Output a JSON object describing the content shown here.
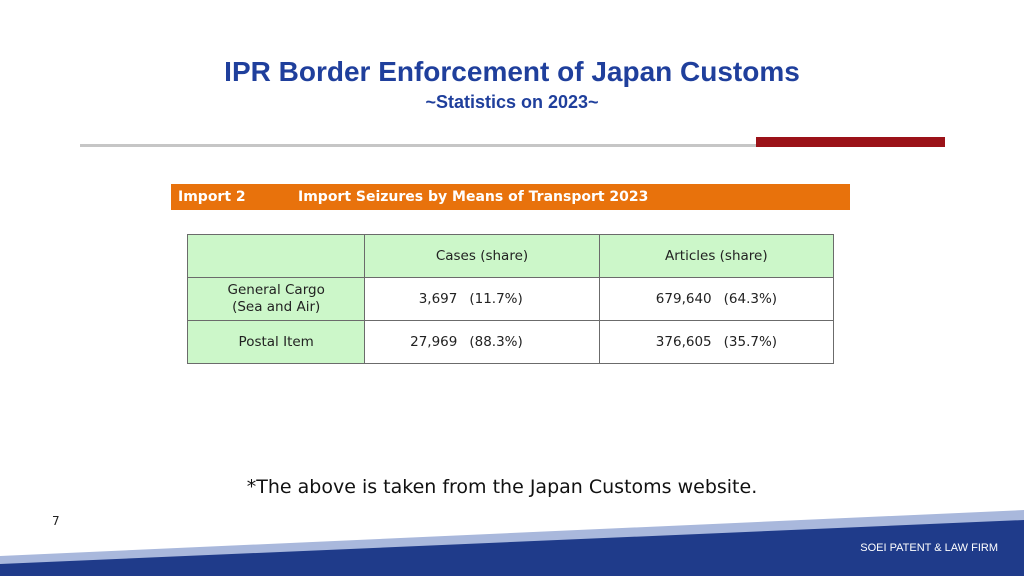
{
  "header": {
    "title": "IPR Border Enforcement of Japan Customs",
    "subtitle": "~Statistics on 2023~"
  },
  "banner": {
    "code": "Import 2",
    "name": "Import Seizures by Means of Transport 2023"
  },
  "table": {
    "columns": [
      "",
      "Cases (share)",
      "Articles (share)"
    ],
    "rows": [
      {
        "label_line1": "General Cargo",
        "label_line2": "(Sea and Air)",
        "cases": "3,697",
        "cases_share": "(11.7%)",
        "articles": "679,640",
        "articles_share": "(64.3%)"
      },
      {
        "label_line1": "Postal Item",
        "label_line2": "",
        "cases": "27,969",
        "cases_share": "(88.3%)",
        "articles": "376,605",
        "articles_share": "(35.7%)"
      }
    ]
  },
  "note": "*The above is taken from the Japan Customs website.",
  "page_number": "7",
  "firm_name": "SOEI PATENT & LAW FIRM",
  "colors": {
    "title": "#1f3f9c",
    "banner": "#e8720c",
    "header_cell": "#ccf7c9",
    "accent_red": "#9b1218",
    "footer_dark": "#1f3b8a",
    "footer_light": "#a9b8dc"
  }
}
